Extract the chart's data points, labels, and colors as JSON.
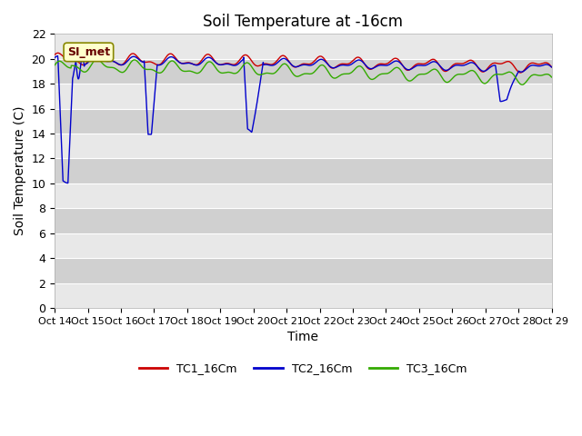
{
  "title": "Soil Temperature at -16cm",
  "xlabel": "Time",
  "ylabel": "Soil Temperature (C)",
  "ylim": [
    0,
    22
  ],
  "yticks": [
    0,
    2,
    4,
    6,
    8,
    10,
    12,
    14,
    16,
    18,
    20,
    22
  ],
  "xtick_labels": [
    "Oct 14",
    "Oct 15",
    "Oct 16",
    "Oct 17",
    "Oct 18",
    "Oct 19",
    "Oct 20",
    "Oct 21",
    "Oct 22",
    "Oct 23",
    "Oct 24",
    "Oct 25",
    "Oct 26",
    "Oct 27",
    "Oct 28",
    "Oct 29"
  ],
  "legend_label": "SI_met",
  "series_labels": [
    "TC1_16Cm",
    "TC2_16Cm",
    "TC3_16Cm"
  ],
  "series_colors": [
    "#cc0000",
    "#0000cc",
    "#33aa00"
  ],
  "band_color_light": "#e8e8e8",
  "band_color_dark": "#d0d0d0",
  "title_fontsize": 12,
  "axis_label_fontsize": 10,
  "tick_fontsize": 9
}
